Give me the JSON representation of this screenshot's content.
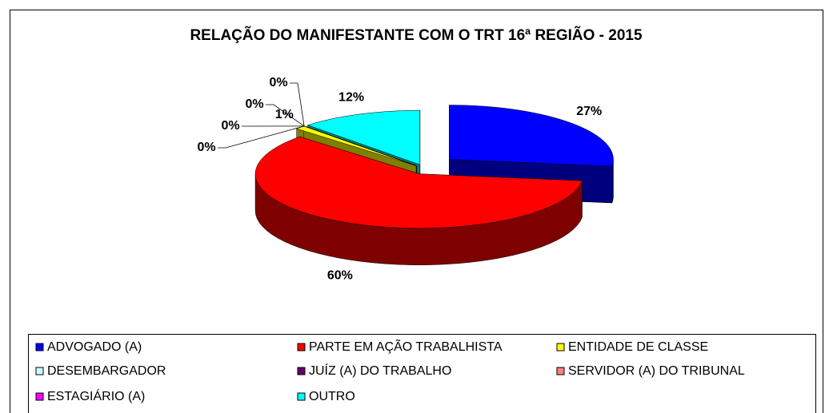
{
  "chart_data": {
    "type": "pie",
    "title": "RELAÇÃO DO MANIFESTANTE COM O TRT 16ª REGIÃO - 2015",
    "categories": [
      "ADVOGADO (A)",
      "PARTE EM AÇÃO TRABALHISTA",
      "ENTIDADE DE CLASSE",
      "DESEMBARGADOR",
      "JUÍZ (A) DO TRABALHO",
      "SERVIDOR (A) DO TRIBUNAL",
      "ESTAGIÁRIO (A)",
      "OUTRO"
    ],
    "values": [
      27,
      60,
      1,
      0,
      0,
      0,
      0,
      12
    ],
    "value_labels": [
      "27%",
      "60%",
      "1%",
      "0%",
      "0%",
      "0%",
      "0%",
      "12%"
    ],
    "colors": [
      "#0000ff",
      "#ff0000",
      "#ffff00",
      "#ccffff",
      "#660066",
      "#ff8080",
      "#ff00ff",
      "#00ffff"
    ],
    "legend": "bottom"
  }
}
